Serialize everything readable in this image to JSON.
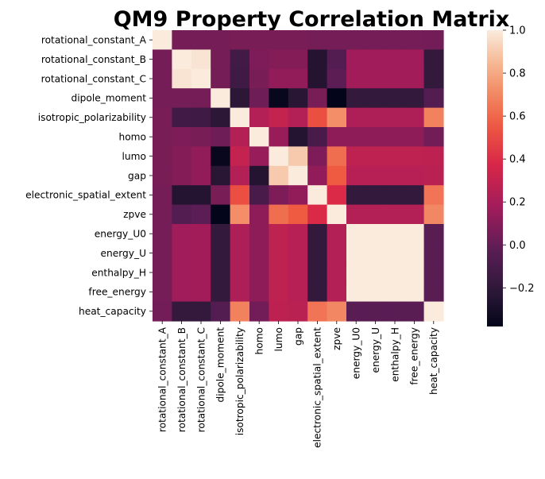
{
  "chart_data": {
    "type": "heatmap",
    "title": "QM9 Property Correlation Matrix",
    "xlabel": "",
    "ylabel": "",
    "labels": [
      "rotational_constant_A",
      "rotational_constant_B",
      "rotational_constant_C",
      "dipole_moment",
      "isotropic_polarizability",
      "homo",
      "lumo",
      "gap",
      "electronic_spatial_extent",
      "zpve",
      "energy_U0",
      "energy_U",
      "enthalpy_H",
      "free_energy",
      "heat_capacity"
    ],
    "colormap": "rocket",
    "vmin": -0.38,
    "vmax": 1.0,
    "colorbar_ticks": [
      1.0,
      0.8,
      0.6,
      0.4,
      0.2,
      0.0,
      -0.2
    ],
    "colorbar_tick_labels": [
      "1.0",
      "0.8",
      "0.6",
      "0.4",
      "0.2",
      "0.0",
      "−0.2"
    ],
    "matrix": [
      [
        1.0,
        0.05,
        0.05,
        0.05,
        0.06,
        0.06,
        0.06,
        0.06,
        0.05,
        0.05,
        0.05,
        0.05,
        0.05,
        0.05,
        0.04
      ],
      [
        0.05,
        1.0,
        0.98,
        0.05,
        -0.13,
        0.07,
        0.09,
        0.09,
        -0.25,
        -0.05,
        0.17,
        0.17,
        0.17,
        0.17,
        -0.18
      ],
      [
        0.05,
        0.98,
        1.0,
        0.05,
        -0.14,
        0.06,
        0.13,
        0.13,
        -0.25,
        -0.02,
        0.18,
        0.18,
        0.18,
        0.18,
        -0.19
      ],
      [
        0.05,
        0.05,
        0.05,
        1.0,
        -0.22,
        0.03,
        -0.36,
        -0.23,
        0.06,
        -0.38,
        -0.19,
        -0.19,
        -0.19,
        -0.19,
        -0.05
      ],
      [
        0.06,
        -0.13,
        -0.14,
        -0.22,
        1.0,
        0.24,
        0.3,
        0.24,
        0.52,
        0.72,
        0.22,
        0.22,
        0.22,
        0.22,
        0.68
      ],
      [
        0.06,
        0.07,
        0.06,
        0.03,
        0.24,
        1.0,
        0.15,
        -0.25,
        -0.1,
        0.12,
        0.12,
        0.12,
        0.12,
        0.12,
        0.04
      ],
      [
        0.06,
        0.09,
        0.13,
        -0.36,
        0.3,
        0.15,
        1.0,
        0.9,
        0.07,
        0.62,
        0.28,
        0.28,
        0.28,
        0.28,
        0.27
      ],
      [
        0.06,
        0.09,
        0.13,
        -0.23,
        0.24,
        -0.25,
        0.9,
        1.0,
        0.13,
        0.56,
        0.25,
        0.25,
        0.25,
        0.25,
        0.26
      ],
      [
        0.05,
        -0.25,
        -0.25,
        0.06,
        0.52,
        -0.1,
        0.07,
        0.13,
        1.0,
        0.39,
        -0.19,
        -0.19,
        -0.19,
        -0.19,
        0.64
      ],
      [
        0.05,
        -0.05,
        -0.02,
        -0.38,
        0.72,
        0.12,
        0.62,
        0.56,
        0.39,
        1.0,
        0.24,
        0.24,
        0.24,
        0.24,
        0.7
      ],
      [
        0.05,
        0.17,
        0.18,
        -0.19,
        0.22,
        0.12,
        0.28,
        0.25,
        -0.19,
        0.24,
        1.0,
        1.0,
        1.0,
        1.0,
        -0.03
      ],
      [
        0.05,
        0.17,
        0.18,
        -0.19,
        0.22,
        0.12,
        0.28,
        0.25,
        -0.19,
        0.24,
        1.0,
        1.0,
        1.0,
        1.0,
        -0.03
      ],
      [
        0.05,
        0.17,
        0.18,
        -0.19,
        0.22,
        0.12,
        0.28,
        0.25,
        -0.19,
        0.24,
        1.0,
        1.0,
        1.0,
        1.0,
        -0.03
      ],
      [
        0.05,
        0.17,
        0.18,
        -0.19,
        0.22,
        0.12,
        0.28,
        0.25,
        -0.19,
        0.24,
        1.0,
        1.0,
        1.0,
        1.0,
        -0.03
      ],
      [
        0.04,
        -0.18,
        -0.19,
        -0.05,
        0.68,
        0.04,
        0.27,
        0.26,
        0.64,
        0.7,
        -0.03,
        -0.03,
        -0.03,
        -0.03,
        1.0
      ]
    ]
  }
}
